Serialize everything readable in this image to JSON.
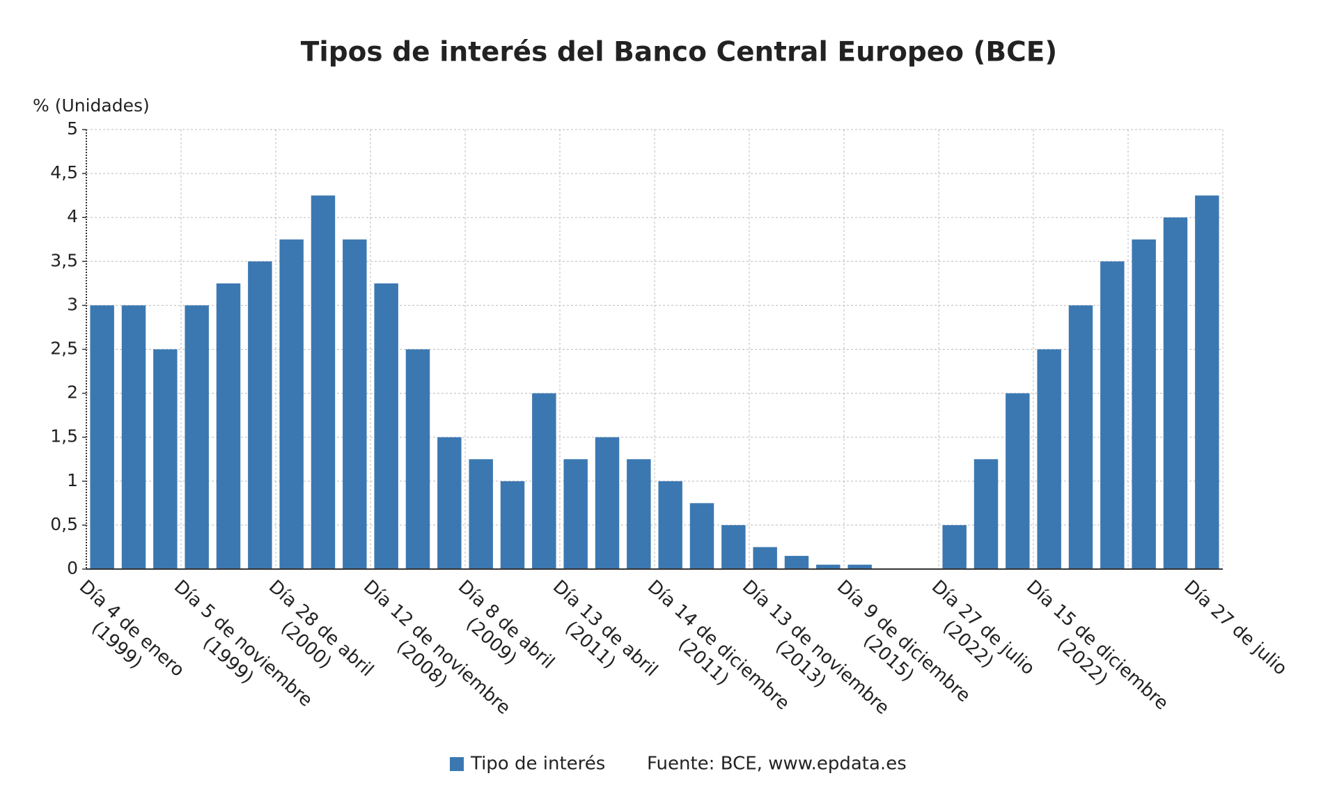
{
  "chart_data": {
    "type": "bar",
    "title": "Tipos de interés del Banco Central Europeo (BCE)",
    "y_axis_label": "% (Unidades)",
    "categories": [
      "Día 4 de enero (1999)",
      null,
      null,
      "Día 5 de noviembre (1999)",
      null,
      null,
      "Día 28 de abril (2000)",
      null,
      null,
      "Día 12 de noviembre (2008)",
      null,
      null,
      "Día 8 de abril (2009)",
      null,
      null,
      "Día 13 de abril (2011)",
      null,
      null,
      "Día 14 de diciembre (2011)",
      null,
      null,
      "Día 13 de noviembre (2013)",
      null,
      null,
      "Día 9 de diciembre (2015)",
      null,
      null,
      "Día 27 de julio (2022)",
      null,
      null,
      "Día 15 de diciembre (2022)",
      null,
      null,
      null,
      null,
      "Día 27 de julio"
    ],
    "series": [
      {
        "name": "Tipo de interés",
        "color": "#3b78b1",
        "values": [
          3,
          3,
          2.5,
          3,
          3.25,
          3.5,
          3.75,
          4.25,
          3.75,
          3.25,
          2.5,
          1.5,
          1.25,
          1,
          2,
          1.25,
          1.5,
          1.25,
          1,
          0.75,
          0.5,
          0.25,
          0.15,
          0.05,
          0.05,
          0,
          0,
          0.5,
          1.25,
          2,
          2.5,
          3,
          3.5,
          3.75,
          4,
          4.25
        ]
      }
    ],
    "ylim": [
      0,
      5
    ],
    "yticks": [
      0,
      {
        "value": 0.5,
        "label": "0,5"
      },
      1,
      {
        "value": 1.5,
        "label": "1,5"
      },
      2,
      {
        "value": 2.5,
        "label": "2,5"
      },
      3,
      {
        "value": 3.5,
        "label": "3,5"
      },
      4,
      {
        "value": 4.5,
        "label": "4,5"
      },
      5
    ],
    "grid": true,
    "source": "Fuente: BCE, www.epdata.es"
  }
}
